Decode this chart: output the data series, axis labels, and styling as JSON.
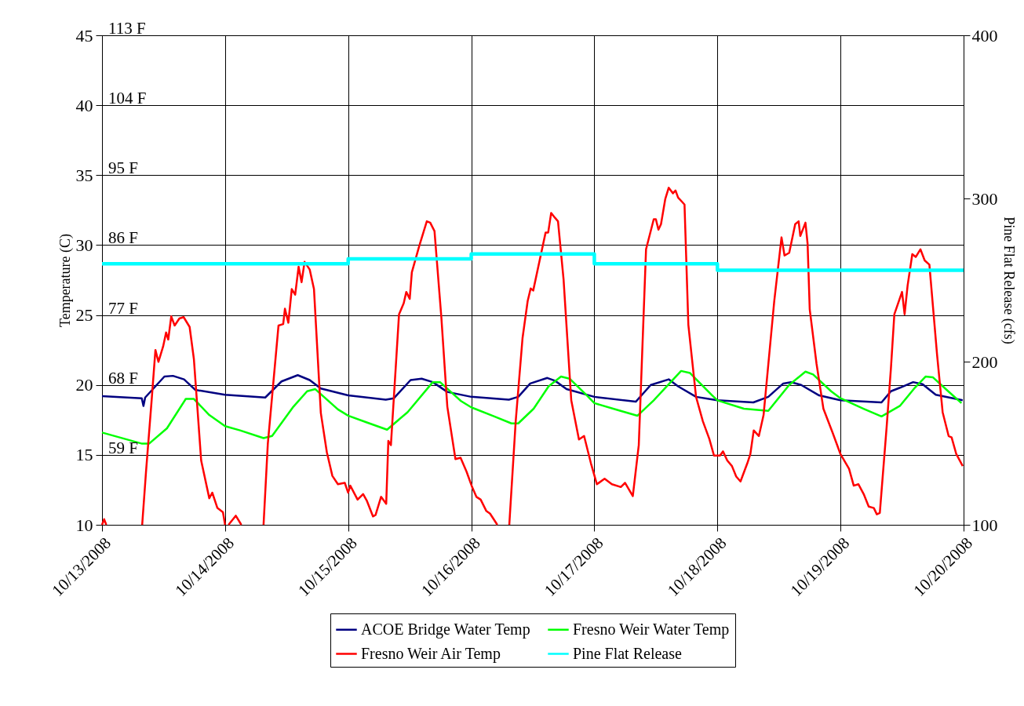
{
  "chart_data": {
    "type": "line",
    "ylabel": "Temperature (C)",
    "y2label": "Pine Flat Release (cfs)",
    "xlim": [
      "2008-10-13",
      "2008-10-20"
    ],
    "xticks": [
      {
        "value": "2008-10-13",
        "label": "10/13/2008"
      },
      {
        "value": "2008-10-14",
        "label": "10/14/2008"
      },
      {
        "value": "2008-10-15",
        "label": "10/15/2008"
      },
      {
        "value": "2008-10-16",
        "label": "10/16/2008"
      },
      {
        "value": "2008-10-17",
        "label": "10/17/2008"
      },
      {
        "value": "2008-10-18",
        "label": "10/18/2008"
      },
      {
        "value": "2008-10-19",
        "label": "10/19/2008"
      },
      {
        "value": "2008-10-20",
        "label": "10/20/2008"
      }
    ],
    "ylim": [
      10,
      45
    ],
    "yticks": [
      10,
      15,
      20,
      25,
      30,
      35,
      40,
      45
    ],
    "y2lim": [
      100,
      400
    ],
    "y2ticks": [
      100,
      200,
      300,
      400
    ],
    "grid": true,
    "legend": "bottom",
    "line_style": "solid",
    "marker": "none",
    "annotations": [
      "113 F",
      "104 F",
      "95 F",
      "86 F",
      "77 F",
      "68 F",
      "59 F"
    ],
    "series": [
      {
        "name": "ACOE Bridge Water Temp",
        "color": "#000080",
        "x": [
          "2008-10-13T00:00",
          "2008-10-13T07:45",
          "2008-10-13T08:05",
          "2008-10-13T08:25",
          "2008-10-13T12:10",
          "2008-10-13T13:50",
          "2008-10-13T16:00",
          "2008-10-13T18:10",
          "2008-10-14T00:00",
          "2008-10-14T07:50",
          "2008-10-14T11:00",
          "2008-10-14T14:10",
          "2008-10-14T16:30",
          "2008-10-14T18:40",
          "2008-10-15T00:00",
          "2008-10-15T07:20",
          "2008-10-15T08:55",
          "2008-10-15T12:10",
          "2008-10-15T14:20",
          "2008-10-15T16:30",
          "2008-10-15T19:20",
          "2008-10-16T00:00",
          "2008-10-16T07:20",
          "2008-10-16T09:10",
          "2008-10-16T11:30",
          "2008-10-16T14:50",
          "2008-10-16T16:20",
          "2008-10-16T18:35",
          "2008-10-17T00:00",
          "2008-10-17T08:05",
          "2008-10-17T11:00",
          "2008-10-17T14:30",
          "2008-10-17T16:20",
          "2008-10-17T19:50",
          "2008-10-18T00:00",
          "2008-10-18T07:00",
          "2008-10-18T09:55",
          "2008-10-18T12:50",
          "2008-10-18T14:20",
          "2008-10-18T16:20",
          "2008-10-18T19:50",
          "2008-10-19T00:00",
          "2008-10-19T08:00",
          "2008-10-19T09:50",
          "2008-10-19T11:35",
          "2008-10-19T14:10",
          "2008-10-19T16:00",
          "2008-10-19T18:35",
          "2008-10-19T23:50"
        ],
        "values": [
          19.2,
          19.05,
          18.5,
          19.1,
          20.6,
          20.65,
          20.4,
          19.65,
          19.3,
          19.1,
          20.25,
          20.7,
          20.35,
          19.75,
          19.25,
          18.95,
          19.05,
          20.35,
          20.45,
          20.2,
          19.5,
          19.15,
          18.95,
          19.15,
          20.1,
          20.5,
          20.3,
          19.7,
          19.15,
          18.8,
          20.0,
          20.4,
          19.9,
          19.15,
          18.9,
          18.75,
          19.15,
          20.1,
          20.2,
          20.0,
          19.25,
          18.9,
          18.75,
          19.55,
          19.8,
          20.2,
          20.05,
          19.3,
          18.9
        ]
      },
      {
        "name": "Fresno Weir Water Temp",
        "color": "#00ff00",
        "x": [
          "2008-10-13T00:00",
          "2008-10-13T07:50",
          "2008-10-13T09:10",
          "2008-10-13T12:40",
          "2008-10-13T16:20",
          "2008-10-13T17:55",
          "2008-10-13T20:55",
          "2008-10-14T00:00",
          "2008-10-14T02:55",
          "2008-10-14T07:30",
          "2008-10-14T09:10",
          "2008-10-14T13:20",
          "2008-10-14T16:00",
          "2008-10-14T17:35",
          "2008-10-14T22:00",
          "2008-10-15T00:00",
          "2008-10-15T03:25",
          "2008-10-15T07:35",
          "2008-10-15T11:35",
          "2008-10-15T16:30",
          "2008-10-15T17:55",
          "2008-10-15T22:00",
          "2008-10-16T00:00",
          "2008-10-16T04:30",
          "2008-10-16T07:50",
          "2008-10-16T09:10",
          "2008-10-16T12:10",
          "2008-10-16T15:05",
          "2008-10-16T17:30",
          "2008-10-16T19:10",
          "2008-10-16T22:40",
          "2008-10-17T00:00",
          "2008-10-17T04:35",
          "2008-10-17T08:25",
          "2008-10-17T11:35",
          "2008-10-17T16:55",
          "2008-10-17T18:40",
          "2008-10-17T22:50",
          "2008-10-18T00:00",
          "2008-10-18T05:10",
          "2008-10-18T09:55",
          "2008-10-18T14:00",
          "2008-10-18T17:10",
          "2008-10-18T18:40",
          "2008-10-18T22:10",
          "2008-10-19T00:00",
          "2008-10-19T04:30",
          "2008-10-19T08:00",
          "2008-10-19T11:35",
          "2008-10-19T14:30",
          "2008-10-19T16:35",
          "2008-10-19T18:00",
          "2008-10-19T21:00",
          "2008-10-19T23:35"
        ],
        "values": [
          16.6,
          15.8,
          15.8,
          16.9,
          19.0,
          19.0,
          17.85,
          17.05,
          16.75,
          16.2,
          16.35,
          18.45,
          19.55,
          19.7,
          18.25,
          17.8,
          17.35,
          16.8,
          18.05,
          20.2,
          20.2,
          18.85,
          18.4,
          17.75,
          17.25,
          17.25,
          18.3,
          19.9,
          20.6,
          20.45,
          19.2,
          18.7,
          18.2,
          17.8,
          18.9,
          21.0,
          20.85,
          19.3,
          18.9,
          18.3,
          18.15,
          20.0,
          20.95,
          20.75,
          19.55,
          19.05,
          18.3,
          17.75,
          18.5,
          19.8,
          20.6,
          20.55,
          19.55,
          18.7
        ]
      },
      {
        "name": "Fresno Weir Air Temp",
        "color": "#ff0000",
        "x": [
          "2008-10-13T00:00",
          "2008-10-13T00:25",
          "2008-10-13T00:50",
          "2008-10-13T04:00",
          "2008-10-13T07:50",
          "2008-10-13T08:35",
          "2008-10-13T09:40",
          "2008-10-13T10:25",
          "2008-10-13T11:00",
          "2008-10-13T11:55",
          "2008-10-13T12:30",
          "2008-10-13T12:55",
          "2008-10-13T13:30",
          "2008-10-13T14:10",
          "2008-10-13T15:05",
          "2008-10-13T15:55",
          "2008-10-13T17:05",
          "2008-10-13T17:55",
          "2008-10-13T19:20",
          "2008-10-13T20:55",
          "2008-10-13T21:30",
          "2008-10-13T22:30",
          "2008-10-13T23:35",
          "2008-10-14T00:00",
          "2008-10-14T00:20",
          "2008-10-14T00:40",
          "2008-10-14T02:05",
          "2008-10-14T03:10",
          "2008-10-14T05:00",
          "2008-10-14T07:30",
          "2008-10-14T08:20",
          "2008-10-14T09:20",
          "2008-10-14T10:25",
          "2008-10-14T11:20",
          "2008-10-14T11:40",
          "2008-10-14T12:20",
          "2008-10-14T13:00",
          "2008-10-14T13:40",
          "2008-10-14T14:20",
          "2008-10-14T14:55",
          "2008-10-14T15:30",
          "2008-10-14T16:30",
          "2008-10-14T17:20",
          "2008-10-14T18:40",
          "2008-10-14T19:50",
          "2008-10-14T20:55",
          "2008-10-14T22:00",
          "2008-10-14T23:20",
          "2008-10-15T00:00",
          "2008-10-15T00:25",
          "2008-10-15T01:50",
          "2008-10-15T02:55",
          "2008-10-15T03:40",
          "2008-10-15T04:50",
          "2008-10-15T05:20",
          "2008-10-15T06:25",
          "2008-10-15T07:25",
          "2008-10-15T07:50",
          "2008-10-15T08:20",
          "2008-10-15T09:55",
          "2008-10-15T10:50",
          "2008-10-15T11:20",
          "2008-10-15T12:00",
          "2008-10-15T12:25",
          "2008-10-15T13:50",
          "2008-10-15T15:20",
          "2008-10-15T16:00",
          "2008-10-15T16:50",
          "2008-10-15T18:10",
          "2008-10-15T19:20",
          "2008-10-15T20:55",
          "2008-10-15T21:55",
          "2008-10-15T23:05",
          "2008-10-16T00:10",
          "2008-10-16T01:00",
          "2008-10-16T01:50",
          "2008-10-16T02:55",
          "2008-10-16T03:40",
          "2008-10-16T05:05",
          "2008-10-16T06:00",
          "2008-10-16T07:25",
          "2008-10-16T08:40",
          "2008-10-16T10:00",
          "2008-10-16T11:00",
          "2008-10-16T11:35",
          "2008-10-16T12:05",
          "2008-10-16T13:20",
          "2008-10-16T14:30",
          "2008-10-16T15:00",
          "2008-10-16T15:35",
          "2008-10-16T16:20",
          "2008-10-16T16:55",
          "2008-10-16T18:00",
          "2008-10-16T19:30",
          "2008-10-16T21:00",
          "2008-10-16T22:00",
          "2008-10-16T23:20",
          "2008-10-17T00:30",
          "2008-10-17T02:00",
          "2008-10-17T03:25",
          "2008-10-17T05:10",
          "2008-10-17T06:00",
          "2008-10-17T07:30",
          "2008-10-17T08:40",
          "2008-10-17T10:05",
          "2008-10-17T11:35",
          "2008-10-17T12:00",
          "2008-10-17T12:30",
          "2008-10-17T13:00",
          "2008-10-17T13:50",
          "2008-10-17T14:30",
          "2008-10-17T15:20",
          "2008-10-17T15:50",
          "2008-10-17T16:20",
          "2008-10-17T17:35",
          "2008-10-17T18:20",
          "2008-10-17T19:50",
          "2008-10-17T21:10",
          "2008-10-17T22:25",
          "2008-10-17T23:20",
          "2008-10-18T00:30",
          "2008-10-18T01:05",
          "2008-10-18T01:55",
          "2008-10-18T02:50",
          "2008-10-18T03:40",
          "2008-10-18T04:30",
          "2008-10-18T05:50",
          "2008-10-18T06:25",
          "2008-10-18T07:05",
          "2008-10-18T08:05",
          "2008-10-18T09:00",
          "2008-10-18T11:05",
          "2008-10-18T12:30",
          "2008-10-18T13:05",
          "2008-10-18T14:00",
          "2008-10-18T15:10",
          "2008-10-18T15:50",
          "2008-10-18T16:10",
          "2008-10-18T17:10",
          "2008-10-18T17:35",
          "2008-10-18T18:00",
          "2008-10-18T19:20",
          "2008-10-18T20:40",
          "2008-10-18T22:30",
          "2008-10-19T00:00",
          "2008-10-19T01:40",
          "2008-10-19T02:35",
          "2008-10-19T03:30",
          "2008-10-19T04:35",
          "2008-10-19T05:30",
          "2008-10-19T06:30",
          "2008-10-19T07:05",
          "2008-10-19T07:40",
          "2008-10-19T09:00",
          "2008-10-19T09:50",
          "2008-10-19T10:30",
          "2008-10-19T12:00",
          "2008-10-19T12:30",
          "2008-10-19T13:05",
          "2008-10-19T14:00",
          "2008-10-19T14:40",
          "2008-10-19T15:35",
          "2008-10-19T16:25",
          "2008-10-19T17:20",
          "2008-10-19T18:50",
          "2008-10-19T19:55",
          "2008-10-19T21:05",
          "2008-10-19T21:40",
          "2008-10-19T22:35",
          "2008-10-19T23:50"
        ],
        "values": [
          10.0,
          10.4,
          10.0,
          null,
          10.0,
          13.8,
          18.85,
          22.5,
          21.65,
          22.75,
          23.75,
          23.25,
          24.9,
          24.25,
          24.75,
          24.85,
          24.15,
          21.85,
          14.6,
          11.9,
          12.3,
          11.2,
          10.9,
          10.0,
          null,
          10.0,
          10.65,
          10.0,
          null,
          10.0,
          15.8,
          19.85,
          24.25,
          24.35,
          25.45,
          24.45,
          26.85,
          26.45,
          28.45,
          27.35,
          28.8,
          28.25,
          26.85,
          18.0,
          15.2,
          13.5,
          12.9,
          13.0,
          12.3,
          12.8,
          11.8,
          12.2,
          11.7,
          10.6,
          10.7,
          12.0,
          11.5,
          16.0,
          15.7,
          25.05,
          25.85,
          26.65,
          26.15,
          28.05,
          29.9,
          31.7,
          31.6,
          31.0,
          24.85,
          18.45,
          14.7,
          14.8,
          13.8,
          12.7,
          12.0,
          11.8,
          11.0,
          10.8,
          10.0,
          null,
          10.0,
          17.4,
          23.35,
          26.0,
          26.9,
          26.75,
          28.9,
          30.9,
          30.9,
          32.3,
          31.95,
          31.7,
          27.55,
          18.9,
          16.1,
          16.35,
          14.4,
          12.9,
          13.3,
          12.9,
          12.7,
          13.0,
          12.05,
          15.7,
          29.7,
          31.85,
          31.85,
          31.1,
          31.5,
          33.3,
          34.1,
          33.7,
          33.9,
          33.4,
          32.9,
          24.3,
          19.15,
          17.4,
          16.15,
          14.95,
          14.95,
          15.25,
          14.6,
          14.2,
          13.45,
          13.1,
          14.4,
          15.05,
          16.75,
          16.35,
          17.85,
          26.0,
          30.55,
          29.25,
          29.45,
          31.5,
          31.7,
          30.65,
          31.6,
          30.1,
          25.4,
          21.5,
          18.3,
          16.55,
          15.05,
          14.0,
          12.8,
          12.9,
          12.15,
          11.3,
          11.2,
          10.75,
          10.85,
          17.0,
          21.2,
          25.05,
          26.65,
          25.05,
          27.1,
          29.35,
          29.15,
          29.7,
          28.9,
          28.6,
          22.15,
          18.05,
          16.35,
          16.25,
          15.05,
          14.2
        ]
      },
      {
        "name": "Pine Flat Release",
        "color": "#00ffff",
        "type": "step",
        "axis": "y2",
        "x": [
          "2008-10-13",
          "2008-10-15",
          "2008-10-16",
          "2008-10-17",
          "2008-10-18",
          "2008-10-20"
        ],
        "values": [
          260,
          263,
          266,
          260,
          256,
          256
        ]
      }
    ]
  }
}
